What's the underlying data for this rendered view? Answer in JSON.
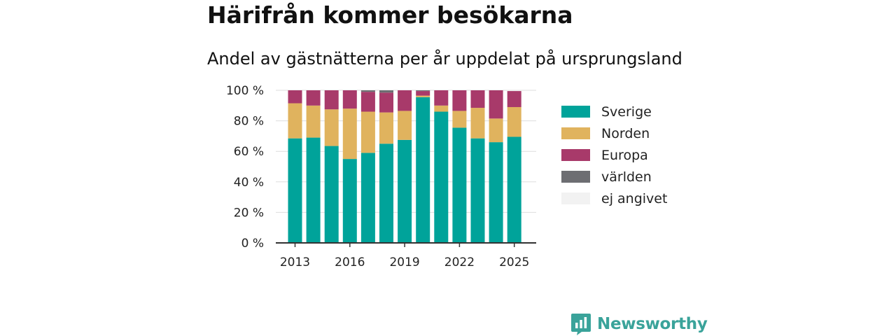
{
  "header": {
    "title": "Härifrån kommer besökarna",
    "subtitle": "Andel av gästnätterna per år uppdelat på ursprungsland"
  },
  "brand": {
    "name": "Newsworthy",
    "color": "#3aa39a"
  },
  "chart_data": {
    "type": "bar",
    "stacked": true,
    "x": [
      2013,
      2014,
      2015,
      2016,
      2017,
      2018,
      2019,
      2020,
      2021,
      2022,
      2023,
      2024,
      2025
    ],
    "x_ticks": [
      2013,
      2016,
      2019,
      2022,
      2025
    ],
    "x_tick_labels": [
      "2013",
      "2016",
      "2019",
      "2022",
      "2025"
    ],
    "y_ticks": [
      0,
      20,
      40,
      60,
      80,
      100
    ],
    "y_tick_labels": [
      "0 %",
      "20 %",
      "40 %",
      "60 %",
      "80 %",
      "100 %"
    ],
    "ylim": [
      0,
      100
    ],
    "grid": true,
    "legend_position": "right",
    "series": [
      {
        "name": "Sverige",
        "color": "#00a39a",
        "values": [
          68.5,
          69,
          63.5,
          55,
          59,
          65,
          67.5,
          95.5,
          86,
          75.5,
          68.5,
          66,
          69.5
        ]
      },
      {
        "name": "Norden",
        "color": "#e0b35e",
        "values": [
          23,
          21,
          24,
          33,
          27,
          20.5,
          19,
          1,
          4,
          11,
          20,
          15.5,
          19.5
        ]
      },
      {
        "name": "Europa",
        "color": "#a83a6a",
        "values": [
          8.5,
          10,
          12.5,
          12,
          13,
          13,
          13.5,
          3,
          10,
          13.5,
          11.5,
          18.5,
          10.5
        ]
      },
      {
        "name": "världen",
        "color": "#6d6e72",
        "values": [
          0,
          0,
          0,
          0,
          1,
          1.5,
          0,
          0.5,
          0,
          0,
          0,
          0,
          0
        ]
      },
      {
        "name": "ej angivet",
        "color": "#f2f2f2",
        "values": [
          0,
          0,
          0,
          0,
          0,
          0,
          0,
          0,
          0,
          0,
          0,
          0,
          0
        ]
      }
    ]
  }
}
